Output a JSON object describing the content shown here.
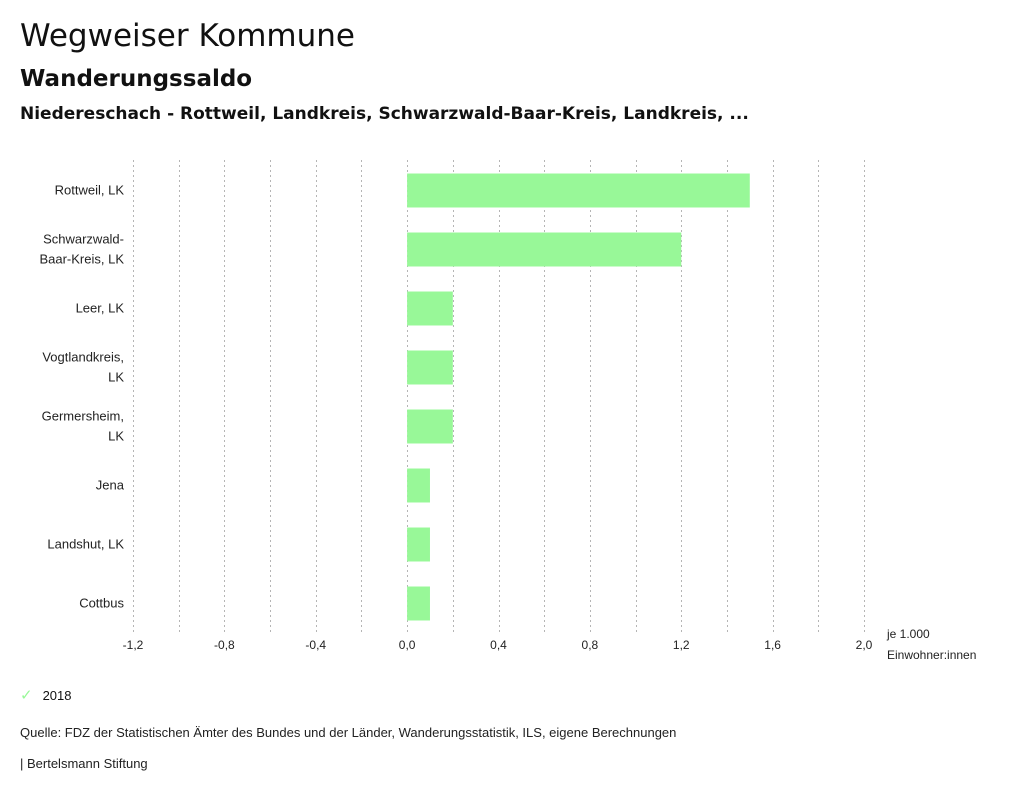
{
  "header": {
    "title": "Wegweiser Kommune",
    "subtitle": "Wanderungssaldo",
    "region": "Niedereschach - Rottweil, Landkreis, Schwarzwald-Baar-Kreis, Landkreis, ..."
  },
  "legend": {
    "icon": "check-icon",
    "label": "2018"
  },
  "footer": {
    "source": "Quelle: FDZ der Statistischen Ämter des Bundes und der Länder, Wanderungsstatistik, ILS, eigene Berechnungen",
    "credit": "| Bertelsmann Stiftung"
  },
  "chart_data": {
    "type": "bar",
    "orientation": "horizontal",
    "title": "Wanderungssaldo",
    "categories": [
      [
        "Rottweil, LK"
      ],
      [
        "Schwarzwald-",
        "Baar-Kreis, LK"
      ],
      [
        "Leer, LK"
      ],
      [
        "Vogtlandkreis,",
        "LK"
      ],
      [
        "Germersheim,",
        "LK"
      ],
      [
        "Jena"
      ],
      [
        "Landshut, LK"
      ],
      [
        "Cottbus"
      ]
    ],
    "series": [
      {
        "name": "2018",
        "color": "#98f898",
        "values": [
          1.5,
          1.2,
          0.2,
          0.2,
          0.2,
          0.1,
          0.1,
          0.1
        ]
      }
    ],
    "xlabel": [
      "je 1.000",
      "Einwohner:innen"
    ],
    "ylabel": "",
    "xlim": [
      -1.2,
      2.0
    ],
    "xticks": [
      -1.2,
      -0.8,
      -0.4,
      0.0,
      0.4,
      0.8,
      1.2,
      1.6,
      2.0
    ],
    "xtick_labels": [
      "-1,2",
      "-0,8",
      "-0,4",
      "0,0",
      "0,4",
      "0,8",
      "1,2",
      "1,6",
      "2,0"
    ],
    "gridlines_step": 0.2,
    "grid": true,
    "legend_position": "bottom-left"
  }
}
